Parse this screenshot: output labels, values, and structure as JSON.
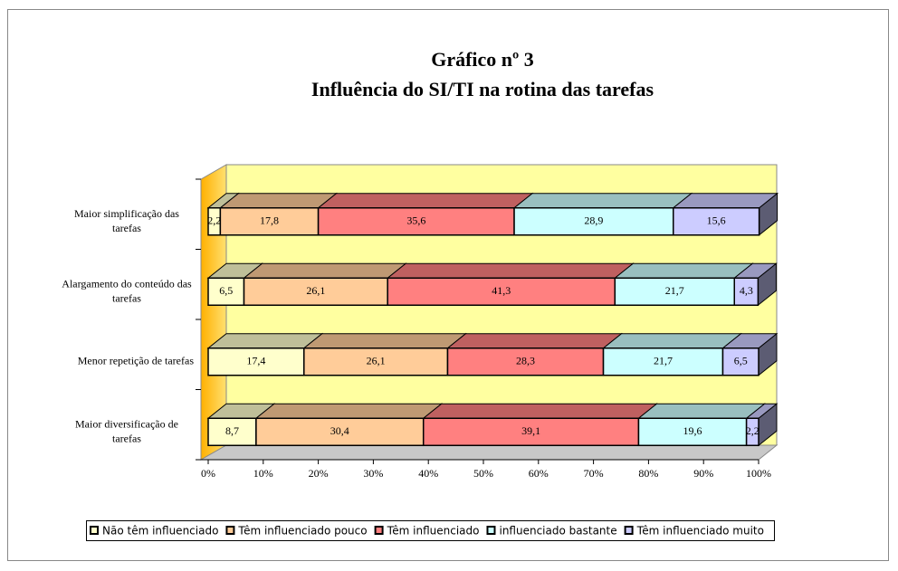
{
  "chart_data": {
    "type": "bar3d_stacked_horizontal",
    "title": [
      "Gráfico nº 3",
      "Influência do SI/TI na rotina das tarefas"
    ],
    "categories": [
      "Maior simplificação das tarefas",
      "Alargamento do conteúdo das tarefas",
      "Menor repetição de tarefas",
      "Maior diversificação de tarefas"
    ],
    "series": [
      {
        "name": "Não têm influenciado",
        "color": "#ffffcc",
        "values": [
          2.2,
          6.5,
          17.4,
          8.7
        ],
        "value_labels": [
          "2,2",
          "6,5",
          "17,4",
          "8,7"
        ]
      },
      {
        "name": "Têm influenciado pouco",
        "color": "#ffcc99",
        "values": [
          17.8,
          26.1,
          26.1,
          30.4
        ],
        "value_labels": [
          "17,8",
          "26,1",
          "26,1",
          "30,4"
        ]
      },
      {
        "name": "Têm influenciado",
        "color": "#ff8080",
        "values": [
          35.6,
          41.3,
          28.3,
          39.1
        ],
        "value_labels": [
          "35,6",
          "41,3",
          "28,3",
          "39,1"
        ]
      },
      {
        "name": "influenciado bastante",
        "color": "#ccffff",
        "values": [
          28.9,
          21.7,
          21.7,
          19.6
        ],
        "value_labels": [
          "28,9",
          "21,7",
          "21,7",
          "19,6"
        ]
      },
      {
        "name": "Têm influenciado muito",
        "color": "#ccccff",
        "values": [
          15.6,
          4.3,
          6.5,
          2.2
        ],
        "value_labels": [
          "15,6",
          "4,3",
          "6,5",
          "2,2"
        ]
      }
    ],
    "xlim": [
      0,
      100
    ],
    "xticks": [
      {
        "value": 0,
        "label": "0%"
      },
      {
        "value": 10,
        "label": "10%"
      },
      {
        "value": 20,
        "label": "20%"
      },
      {
        "value": 30,
        "label": "30%"
      },
      {
        "value": 40,
        "label": "40%"
      },
      {
        "value": 50,
        "label": "50%"
      },
      {
        "value": 60,
        "label": "60%"
      },
      {
        "value": 70,
        "label": "70%"
      },
      {
        "value": 80,
        "label": "80%"
      },
      {
        "value": 90,
        "label": "90%"
      },
      {
        "value": 100,
        "label": "100%"
      }
    ],
    "legend": "bottom"
  }
}
